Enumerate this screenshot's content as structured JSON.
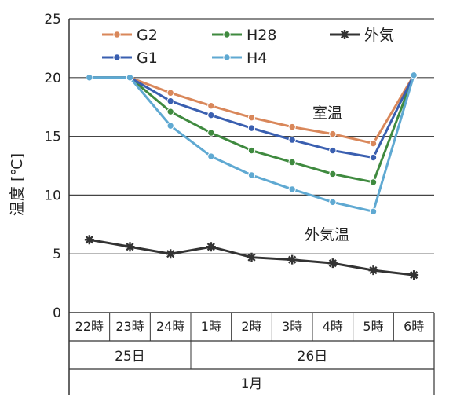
{
  "chart_data": {
    "type": "line",
    "ylabel": "温度 [℃]",
    "ylim": [
      0,
      25
    ],
    "yticks": [
      0,
      5,
      10,
      15,
      20,
      25
    ],
    "grid": "horizontal",
    "legend_position": "top",
    "categories": [
      "22時",
      "23時",
      "24時",
      "1時",
      "2時",
      "3時",
      "4時",
      "5時",
      "6時"
    ],
    "day_groups": [
      {
        "label": "25日",
        "start": 0,
        "end": 2
      },
      {
        "label": "26日",
        "start": 3,
        "end": 8
      }
    ],
    "month_label": "1月",
    "annotations": [
      {
        "text": "室温",
        "near_series": "G2"
      },
      {
        "text": "外気温",
        "near_series": "外気"
      }
    ],
    "series": [
      {
        "name": "G2",
        "color": "#d9875a",
        "marker": "circle",
        "values": [
          20,
          20,
          18.7,
          17.6,
          16.6,
          15.8,
          15.2,
          14.4,
          20.2
        ]
      },
      {
        "name": "H28",
        "color": "#3f8a3f",
        "marker": "circle",
        "values": [
          20,
          20,
          17.1,
          15.3,
          13.8,
          12.8,
          11.8,
          11.1,
          20.2
        ]
      },
      {
        "name": "外気",
        "color": "#333333",
        "marker": "star",
        "values": [
          6.2,
          5.6,
          5.0,
          5.6,
          4.7,
          4.5,
          4.2,
          3.6,
          3.2
        ]
      },
      {
        "name": "G1",
        "color": "#3a5fb0",
        "marker": "circle",
        "values": [
          20,
          20,
          18.0,
          16.8,
          15.7,
          14.7,
          13.8,
          13.2,
          20.2
        ]
      },
      {
        "name": "H4",
        "color": "#5fa9d2",
        "marker": "circle",
        "values": [
          20,
          20,
          15.9,
          13.3,
          11.7,
          10.5,
          9.4,
          8.6,
          20.2
        ]
      }
    ]
  }
}
